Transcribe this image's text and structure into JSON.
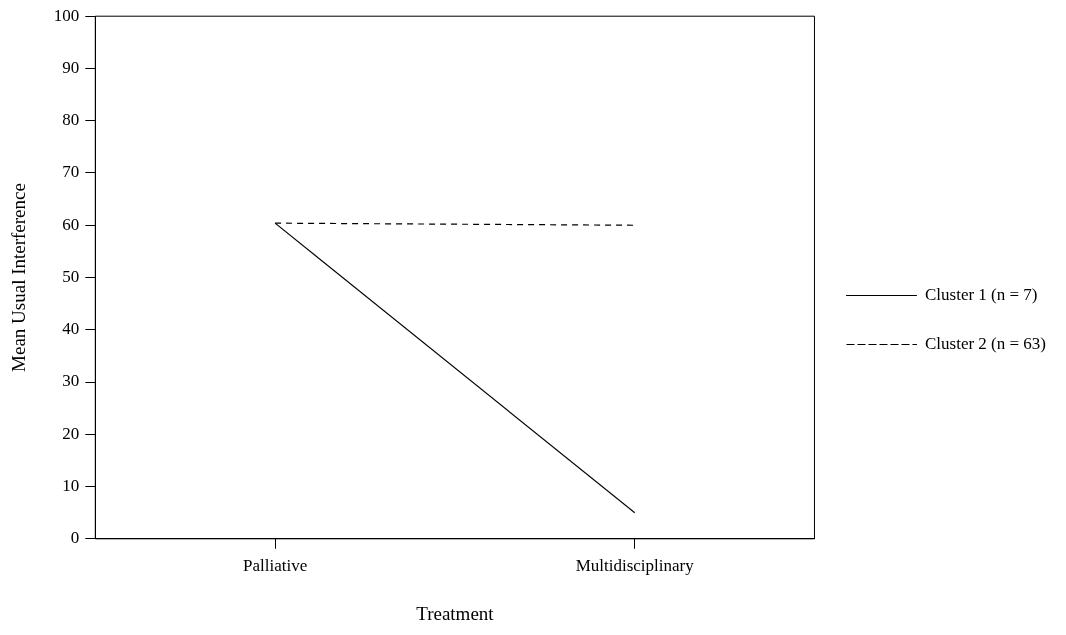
{
  "chart_data": {
    "type": "line",
    "xlabel": "Treatment",
    "ylabel": "Mean Usual Interference",
    "categories": [
      "Palliative",
      "Multidisciplinary"
    ],
    "series": [
      {
        "name": "Cluster 1 (n = 7)",
        "color": "#000000",
        "values": [
          60.4,
          5
        ],
        "line_style": "solid"
      },
      {
        "name": "Cluster 2 (n = 63)",
        "color": "#000000",
        "values": [
          60.4,
          60
        ],
        "line_style": "dashed"
      }
    ],
    "ylim": [
      0,
      100
    ],
    "yticks": [
      0,
      10,
      20,
      30,
      40,
      50,
      60,
      70,
      80,
      90,
      100
    ],
    "grid": false,
    "legend": "right",
    "marker": "none"
  }
}
